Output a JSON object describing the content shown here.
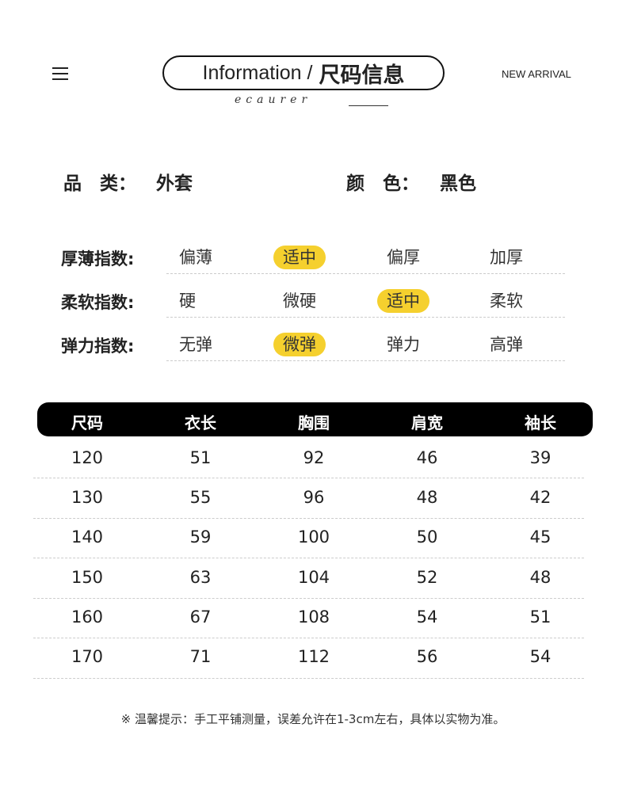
{
  "header": {
    "title_en": "Information /",
    "title_cn": "尺码信息",
    "signature": "ecaurer",
    "new_arrival": "NEW ARRIVAL",
    "menu_icon": "hamburger-icon"
  },
  "info": {
    "category_label": "品　类：",
    "category_value": "外套",
    "color_label": "颜　色：",
    "color_value": "黑色"
  },
  "indices": [
    {
      "label": "厚薄指数:",
      "options": [
        "偏薄",
        "适中",
        "偏厚",
        "加厚"
      ],
      "selected": 1
    },
    {
      "label": "柔软指数:",
      "options": [
        "硬",
        "微硬",
        "适中",
        "柔软"
      ],
      "selected": 2
    },
    {
      "label": "弹力指数:",
      "options": [
        "无弹",
        "微弹",
        "弹力",
        "高弹"
      ],
      "selected": 1
    }
  ],
  "highlight_color": "#f5d02e",
  "table": {
    "headers": [
      "尺码",
      "衣长",
      "胸围",
      "肩宽",
      "袖长"
    ],
    "rows": [
      [
        "120",
        "51",
        "92",
        "46",
        "39"
      ],
      [
        "130",
        "55",
        "96",
        "48",
        "42"
      ],
      [
        "140",
        "59",
        "100",
        "50",
        "45"
      ],
      [
        "150",
        "63",
        "104",
        "52",
        "48"
      ],
      [
        "160",
        "67",
        "108",
        "54",
        "51"
      ],
      [
        "170",
        "71",
        "112",
        "56",
        "54"
      ]
    ]
  },
  "note": "※ 温馨提示：手工平铺测量，误差允许在1-3cm左右，具体以实物为准。"
}
